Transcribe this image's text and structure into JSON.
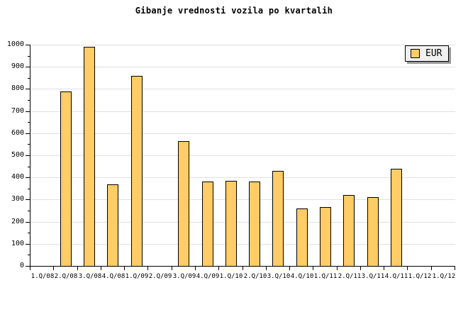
{
  "title": "Gibanje vrednosti vozila po kvartalih",
  "legend": {
    "label": "EUR"
  },
  "colors": {
    "bar_fill": "#FFCC66",
    "bar_border": "#000000",
    "gridline": "#E0E0E0",
    "axis": "#000000",
    "background": "#FFFFFF",
    "legend_bg": "#F0F0F0",
    "legend_shadow": "#999999"
  },
  "chart_data": {
    "type": "bar",
    "title": "Gibanje vrednosti vozila po kvartalih",
    "categories": [
      "1.Q/08",
      "2.Q/08",
      "3.Q/08",
      "4.Q/08",
      "1.Q/09",
      "2.Q/09",
      "3.Q/09",
      "4.Q/09",
      "1.Q/10",
      "2.Q/10",
      "3.Q/10",
      "4.Q/10",
      "1.Q/11",
      "2.Q/11",
      "3.Q/11",
      "4.Q/11",
      "1.Q/12",
      "1.Q/12"
    ],
    "series": [
      {
        "name": "EUR",
        "values": [
          null,
          790,
          990,
          370,
          860,
          null,
          565,
          380,
          385,
          380,
          430,
          260,
          265,
          320,
          310,
          440,
          null,
          null
        ]
      }
    ],
    "xlabel": "",
    "ylabel": "",
    "ylim": [
      0,
      1000
    ],
    "y_tick_interval": 100,
    "y_minor_tick_interval": 50,
    "grid": "horizontal-only",
    "legend_position": "top-right"
  }
}
